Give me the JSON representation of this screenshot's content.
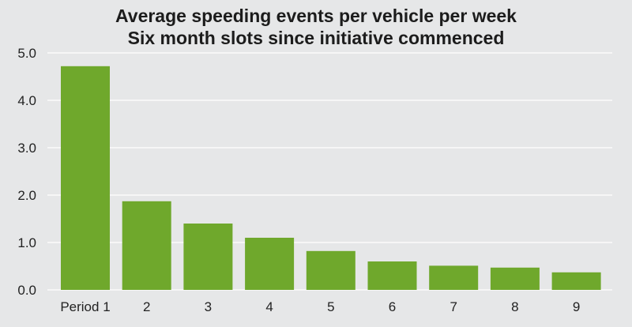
{
  "chart_data": {
    "type": "bar",
    "title": "Average speeding events per vehicle per week",
    "subtitle": "Six month slots since initiative commenced",
    "categories": [
      "Period 1",
      "2",
      "3",
      "4",
      "5",
      "6",
      "7",
      "8",
      "9"
    ],
    "values": [
      4.72,
      1.87,
      1.4,
      1.1,
      0.82,
      0.6,
      0.51,
      0.47,
      0.37
    ],
    "y_ticks": [
      "0.0",
      "1.0",
      "2.0",
      "3.0",
      "4.0",
      "5.0"
    ],
    "ylim": [
      0,
      5
    ],
    "xlabel": "",
    "ylabel": "",
    "grid": true,
    "legend": "none",
    "colors": {
      "bar": "#6fa82c",
      "background": "#e6e7e8",
      "grid": "#ffffff"
    }
  }
}
